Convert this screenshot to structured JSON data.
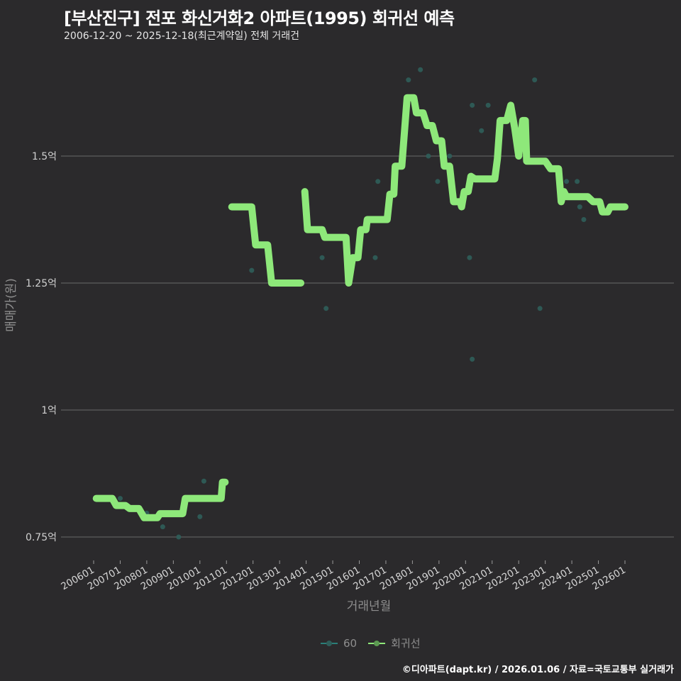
{
  "header": {
    "title": "[부산진구] 전포 화신거화2 아파트(1995) 회귀선 예측",
    "subtitle": "2006-12-20 ~ 2025-12-18(최근계약일) 전체 거래건"
  },
  "legend": {
    "items": [
      {
        "label": "60",
        "color": "#2a7f7a"
      },
      {
        "label": "회귀선",
        "color": "#8ee87a"
      }
    ]
  },
  "footer": {
    "credit": "©디아파트(dapt.kr) / 2026.01.06 / 자료=국토교통부 실거래가"
  },
  "colors": {
    "background": "#2b2a2c",
    "grid": "#6a6a6a",
    "regression": "#8ee87a",
    "scatter": "#2f5e5a"
  },
  "chart_data": {
    "type": "line",
    "title": "[부산진구] 전포 화신거화2 아파트(1995) 회귀선 예측",
    "subtitle": "2006-12-20 ~ 2025-12-18(최근계약일) 전체 거래건",
    "xlabel": "거래년월",
    "ylabel": "매매가(원)",
    "y_ticks": [
      {
        "value": 0.75,
        "label": "0.75억"
      },
      {
        "value": 1.0,
        "label": "1억"
      },
      {
        "value": 1.25,
        "label": "1.25억"
      },
      {
        "value": 1.5,
        "label": "1.5억"
      }
    ],
    "x_ticks": [
      "200601",
      "200701",
      "200801",
      "200901",
      "201001",
      "201101",
      "201201",
      "201301",
      "201401",
      "201501",
      "201601",
      "201701",
      "201801",
      "201901",
      "202001",
      "202101",
      "202201",
      "202301",
      "202401",
      "202501",
      "202601"
    ],
    "ylim": [
      0.7,
      1.72
    ],
    "xlim": [
      2005.1,
      2027.0
    ],
    "grid": "horizontal",
    "legend_position": "bottom",
    "series": [
      {
        "name": "60",
        "kind": "scatter",
        "unit": "억",
        "points": [
          [
            2007.0,
            0.826
          ],
          [
            2008.0,
            0.797
          ],
          [
            2008.6,
            0.77
          ],
          [
            2009.2,
            0.75
          ],
          [
            2010.0,
            0.79
          ],
          [
            2010.15,
            0.86
          ],
          [
            2011.95,
            1.275
          ],
          [
            2014.6,
            1.3
          ],
          [
            2014.75,
            1.2
          ],
          [
            2016.6,
            1.3
          ],
          [
            2016.7,
            1.45
          ],
          [
            2017.7,
            1.52
          ],
          [
            2017.85,
            1.65
          ],
          [
            2018.3,
            1.67
          ],
          [
            2018.6,
            1.5
          ],
          [
            2018.95,
            1.45
          ],
          [
            2019.4,
            1.5
          ],
          [
            2020.25,
            1.6
          ],
          [
            2020.15,
            1.3
          ],
          [
            2020.25,
            1.1
          ],
          [
            2020.6,
            1.55
          ],
          [
            2020.85,
            1.6
          ],
          [
            2022.3,
            1.5
          ],
          [
            2022.6,
            1.65
          ],
          [
            2022.8,
            1.2
          ],
          [
            2023.8,
            1.45
          ],
          [
            2024.2,
            1.45
          ],
          [
            2024.3,
            1.4
          ],
          [
            2024.45,
            1.375
          ]
        ]
      },
      {
        "name": "회귀선",
        "kind": "line",
        "unit": "억",
        "segments": [
          [
            [
              2006.1,
              0.826
            ],
            [
              2006.7,
              0.826
            ],
            [
              2006.85,
              0.812
            ],
            [
              2007.2,
              0.812
            ],
            [
              2007.35,
              0.806
            ],
            [
              2007.7,
              0.806
            ],
            [
              2007.9,
              0.788
            ],
            [
              2008.4,
              0.788
            ],
            [
              2008.5,
              0.796
            ],
            [
              2008.9,
              0.796
            ],
            [
              2009.1,
              0.796
            ],
            [
              2009.35,
              0.796
            ],
            [
              2009.45,
              0.826
            ],
            [
              2010.7,
              0.826
            ],
            [
              2010.8,
              0.826
            ],
            [
              2010.85,
              0.858
            ],
            [
              2010.95,
              0.858
            ]
          ],
          [
            [
              2011.2,
              1.4
            ],
            [
              2011.95,
              1.4
            ],
            [
              2012.1,
              1.325
            ],
            [
              2012.55,
              1.325
            ],
            [
              2012.7,
              1.25
            ],
            [
              2013.8,
              1.25
            ]
          ],
          [
            [
              2013.95,
              1.43
            ],
            [
              2014.05,
              1.355
            ],
            [
              2014.6,
              1.355
            ],
            [
              2014.7,
              1.34
            ],
            [
              2015.5,
              1.34
            ],
            [
              2015.6,
              1.25
            ],
            [
              2015.75,
              1.3
            ],
            [
              2015.95,
              1.3
            ],
            [
              2016.05,
              1.355
            ],
            [
              2016.25,
              1.355
            ],
            [
              2016.3,
              1.375
            ],
            [
              2017.05,
              1.375
            ],
            [
              2017.15,
              1.425
            ],
            [
              2017.3,
              1.425
            ],
            [
              2017.35,
              1.48
            ],
            [
              2017.6,
              1.48
            ],
            [
              2017.8,
              1.615
            ],
            [
              2018.05,
              1.615
            ],
            [
              2018.15,
              1.585
            ],
            [
              2018.4,
              1.585
            ],
            [
              2018.55,
              1.56
            ],
            [
              2018.75,
              1.56
            ],
            [
              2018.9,
              1.53
            ],
            [
              2019.1,
              1.53
            ],
            [
              2019.2,
              1.48
            ],
            [
              2019.4,
              1.48
            ],
            [
              2019.55,
              1.41
            ],
            [
              2019.8,
              1.41
            ],
            [
              2019.85,
              1.4
            ],
            [
              2019.95,
              1.43
            ],
            [
              2020.1,
              1.43
            ],
            [
              2020.2,
              1.46
            ],
            [
              2020.35,
              1.455
            ],
            [
              2021.1,
              1.455
            ],
            [
              2021.2,
              1.495
            ],
            [
              2021.3,
              1.57
            ],
            [
              2021.55,
              1.57
            ],
            [
              2021.7,
              1.6
            ],
            [
              2021.85,
              1.555
            ],
            [
              2022.0,
              1.5
            ],
            [
              2022.15,
              1.57
            ],
            [
              2022.25,
              1.57
            ],
            [
              2022.3,
              1.49
            ],
            [
              2023.0,
              1.49
            ],
            [
              2023.2,
              1.475
            ],
            [
              2023.5,
              1.475
            ],
            [
              2023.6,
              1.41
            ],
            [
              2023.7,
              1.43
            ],
            [
              2023.8,
              1.42
            ],
            [
              2024.6,
              1.42
            ],
            [
              2024.8,
              1.41
            ],
            [
              2025.05,
              1.41
            ],
            [
              2025.15,
              1.39
            ],
            [
              2025.35,
              1.39
            ],
            [
              2025.45,
              1.4
            ],
            [
              2026.0,
              1.4
            ]
          ]
        ]
      }
    ]
  }
}
